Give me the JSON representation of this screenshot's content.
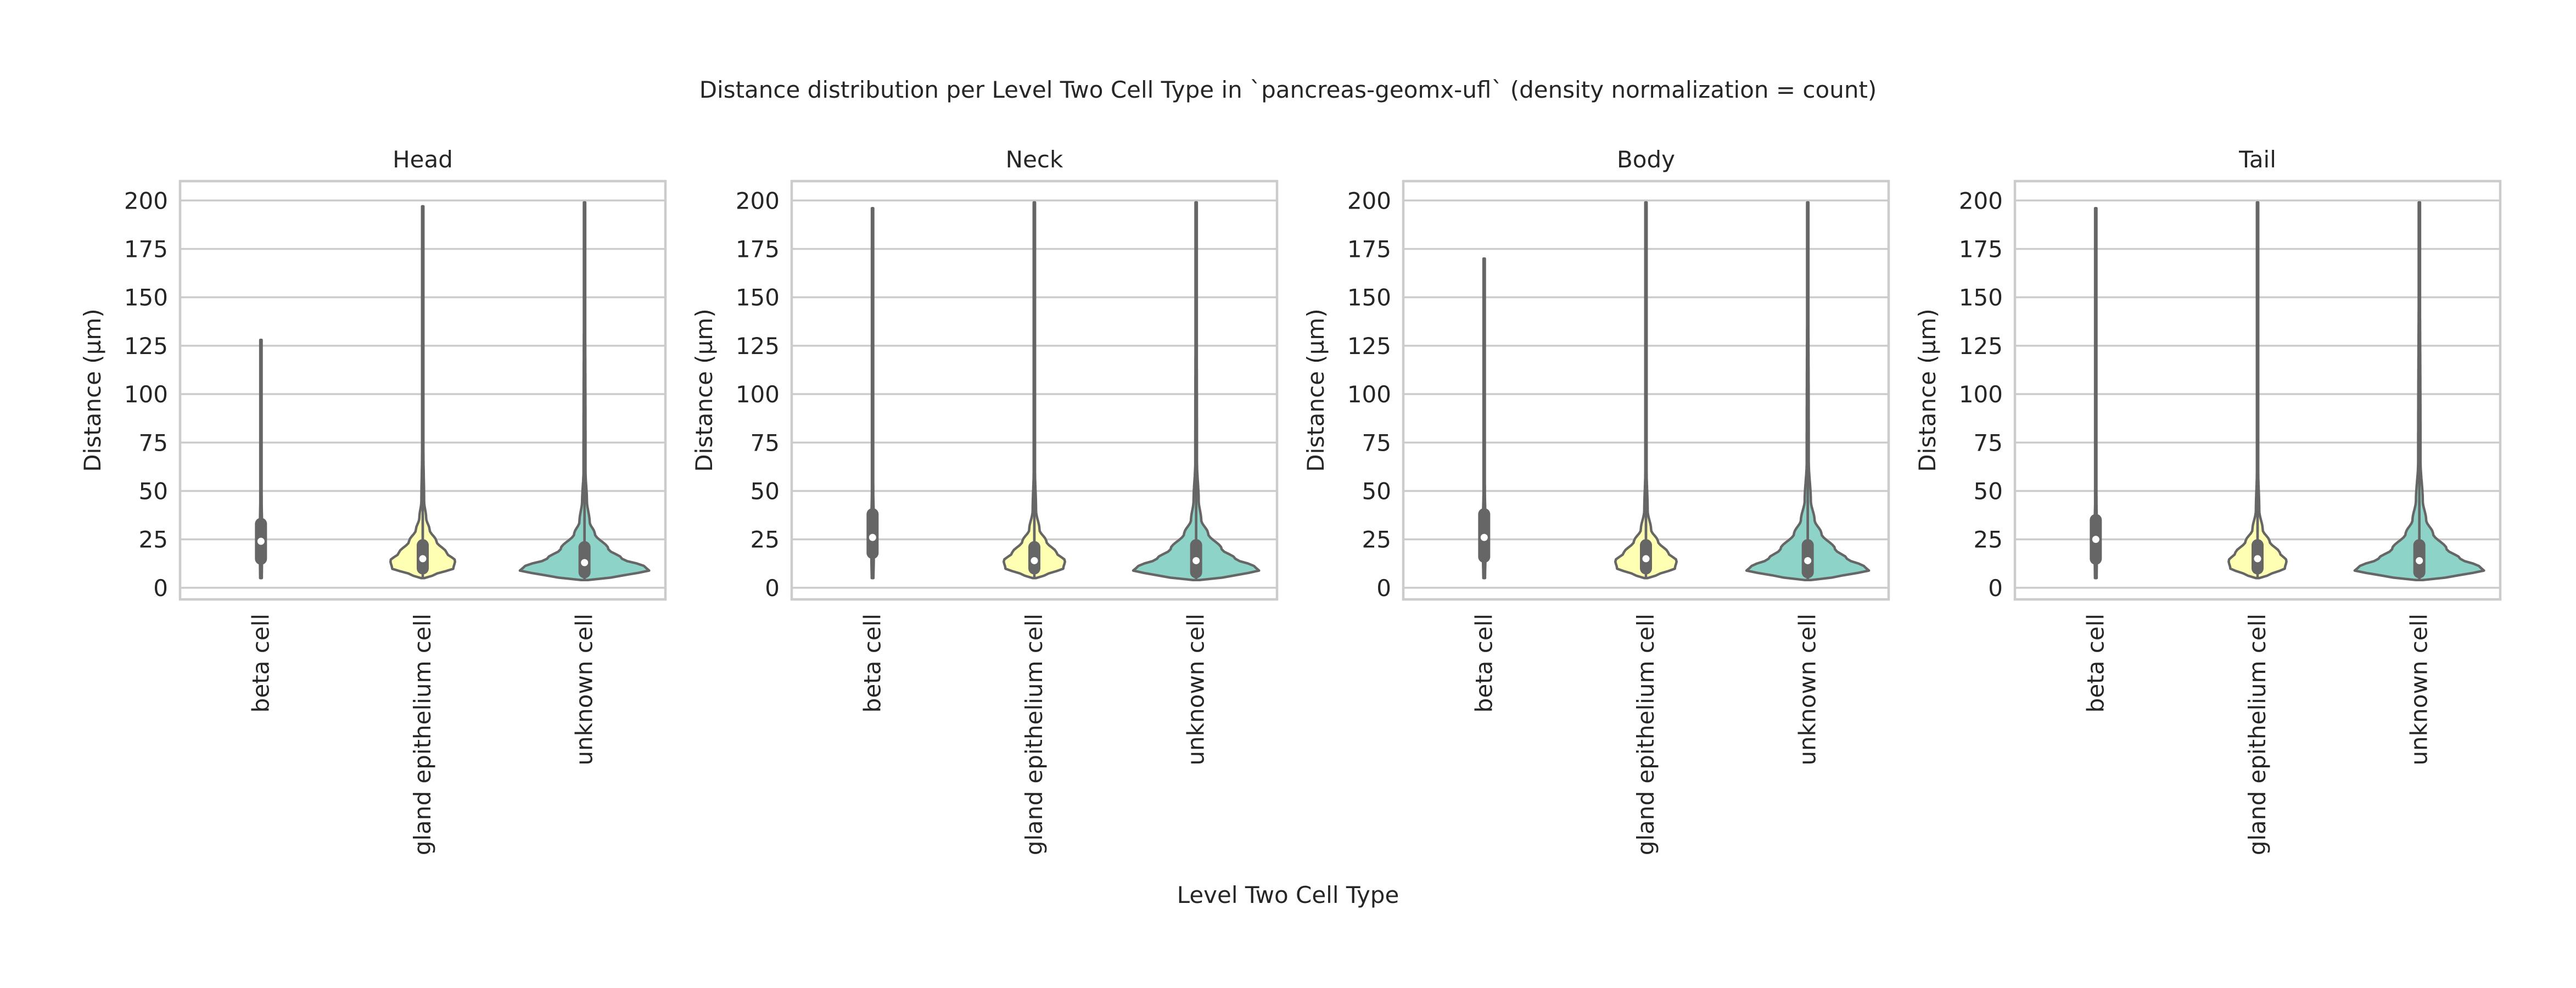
{
  "chart_data": {
    "type": "violin",
    "title": "Distance distribution per Level Two Cell Type in `pancreas-geomx-ufl` (density normalization = count)",
    "xlabel": "Level Two Cell Type",
    "ylabel": "Distance (µm)",
    "ylim": [
      -6,
      210
    ],
    "yticks": [
      0,
      25,
      50,
      75,
      100,
      125,
      150,
      175,
      200
    ],
    "grid": true,
    "categories": [
      "beta cell",
      "gland epithelium cell",
      "unknown cell"
    ],
    "colors": {
      "beta cell": "#bebada",
      "gland epithelium cell": "#ffffb3",
      "unknown cell": "#8dd3c7"
    },
    "panels": [
      {
        "title": "Head",
        "violins": [
          {
            "category": "beta cell",
            "min": 5,
            "max": 128,
            "q1": 15,
            "median": 24,
            "q3": 33,
            "whisker_high": 58,
            "profile": [
              [
                5,
                0.5
              ],
              [
                15,
                0.6
              ],
              [
                25,
                0.7
              ],
              [
                33,
                0.6
              ],
              [
                45,
                0.4
              ],
              [
                60,
                0.3
              ],
              [
                128,
                0.2
              ]
            ]
          },
          {
            "category": "gland epithelium cell",
            "min": 5,
            "max": 197,
            "q1": 10,
            "median": 15,
            "q3": 22,
            "whisker_high": 38,
            "profile": [
              [
                5,
                1
              ],
              [
                7,
                8
              ],
              [
                10,
                18
              ],
              [
                14,
                19
              ],
              [
                18,
                14
              ],
              [
                24,
                8
              ],
              [
                30,
                4
              ],
              [
                36,
                2
              ],
              [
                45,
                0.8
              ],
              [
                70,
                0.4
              ],
              [
                197,
                0.2
              ]
            ]
          },
          {
            "category": "unknown cell",
            "min": 4,
            "max": 199,
            "q1": 8,
            "median": 13,
            "q3": 21,
            "whisker_high": 40,
            "profile": [
              [
                4,
                2
              ],
              [
                6,
                22
              ],
              [
                9,
                38
              ],
              [
                11,
                35
              ],
              [
                15,
                22
              ],
              [
                20,
                14
              ],
              [
                28,
                6
              ],
              [
                34,
                3
              ],
              [
                45,
                1.4
              ],
              [
                60,
                0.6
              ],
              [
                199,
                0.2
              ]
            ]
          }
        ]
      },
      {
        "title": "Neck",
        "violins": [
          {
            "category": "beta cell",
            "min": 5,
            "max": 196,
            "q1": 18,
            "median": 26,
            "q3": 38,
            "whisker_high": 67,
            "profile": [
              [
                5,
                0.5
              ],
              [
                15,
                0.7
              ],
              [
                25,
                0.8
              ],
              [
                35,
                0.7
              ],
              [
                50,
                0.4
              ],
              [
                67,
                0.3
              ],
              [
                196,
                0.2
              ]
            ]
          },
          {
            "category": "gland epithelium cell",
            "min": 5,
            "max": 199,
            "q1": 10,
            "median": 14,
            "q3": 21,
            "whisker_high": 36,
            "profile": [
              [
                5,
                1
              ],
              [
                7,
                8
              ],
              [
                10,
                17
              ],
              [
                14,
                18
              ],
              [
                18,
                13
              ],
              [
                24,
                7
              ],
              [
                30,
                3
              ],
              [
                40,
                1
              ],
              [
                60,
                0.4
              ],
              [
                199,
                0.2
              ]
            ]
          },
          {
            "category": "unknown cell",
            "min": 4,
            "max": 199,
            "q1": 8,
            "median": 14,
            "q3": 22,
            "whisker_high": 42,
            "profile": [
              [
                4,
                2
              ],
              [
                6,
                22
              ],
              [
                9,
                37
              ],
              [
                11,
                34
              ],
              [
                15,
                23
              ],
              [
                20,
                15
              ],
              [
                28,
                7
              ],
              [
                35,
                3
              ],
              [
                45,
                1.5
              ],
              [
                65,
                0.5
              ],
              [
                199,
                0.2
              ]
            ]
          }
        ]
      },
      {
        "title": "Body",
        "violins": [
          {
            "category": "beta cell",
            "min": 5,
            "max": 170,
            "q1": 16,
            "median": 26,
            "q3": 38,
            "whisker_high": 68,
            "profile": [
              [
                5,
                0.5
              ],
              [
                15,
                0.7
              ],
              [
                25,
                0.8
              ],
              [
                35,
                0.7
              ],
              [
                50,
                0.4
              ],
              [
                68,
                0.3
              ],
              [
                170,
                0.2
              ]
            ]
          },
          {
            "category": "gland epithelium cell",
            "min": 5,
            "max": 199,
            "q1": 10,
            "median": 15,
            "q3": 22,
            "whisker_high": 38,
            "profile": [
              [
                5,
                1
              ],
              [
                7,
                8
              ],
              [
                10,
                17
              ],
              [
                14,
                18
              ],
              [
                18,
                13
              ],
              [
                24,
                7
              ],
              [
                30,
                3
              ],
              [
                40,
                1
              ],
              [
                60,
                0.4
              ],
              [
                199,
                0.2
              ]
            ]
          },
          {
            "category": "unknown cell",
            "min": 4,
            "max": 199,
            "q1": 8,
            "median": 14,
            "q3": 22,
            "whisker_high": 45,
            "profile": [
              [
                4,
                2
              ],
              [
                6,
                20
              ],
              [
                9,
                36
              ],
              [
                11,
                33
              ],
              [
                15,
                23
              ],
              [
                20,
                16
              ],
              [
                28,
                8
              ],
              [
                35,
                4
              ],
              [
                45,
                1.8
              ],
              [
                65,
                0.6
              ],
              [
                199,
                0.2
              ]
            ]
          }
        ]
      },
      {
        "title": "Tail",
        "violins": [
          {
            "category": "beta cell",
            "min": 5,
            "max": 196,
            "q1": 15,
            "median": 25,
            "q3": 35,
            "whisker_high": 60,
            "profile": [
              [
                5,
                0.5
              ],
              [
                15,
                0.6
              ],
              [
                25,
                0.7
              ],
              [
                33,
                0.6
              ],
              [
                45,
                0.4
              ],
              [
                60,
                0.3
              ],
              [
                196,
                0.2
              ]
            ]
          },
          {
            "category": "gland epithelium cell",
            "min": 5,
            "max": 199,
            "q1": 10,
            "median": 15,
            "q3": 22,
            "whisker_high": 38,
            "profile": [
              [
                5,
                1
              ],
              [
                7,
                8
              ],
              [
                10,
                16
              ],
              [
                14,
                17
              ],
              [
                18,
                13
              ],
              [
                24,
                7
              ],
              [
                30,
                3
              ],
              [
                40,
                1
              ],
              [
                60,
                0.4
              ],
              [
                199,
                0.2
              ]
            ]
          },
          {
            "category": "unknown cell",
            "min": 4,
            "max": 199,
            "q1": 8,
            "median": 14,
            "q3": 22,
            "whisker_high": 45,
            "profile": [
              [
                4,
                2
              ],
              [
                6,
                22
              ],
              [
                9,
                38
              ],
              [
                11,
                35
              ],
              [
                15,
                24
              ],
              [
                20,
                16
              ],
              [
                28,
                8
              ],
              [
                35,
                4
              ],
              [
                45,
                2
              ],
              [
                65,
                0.7
              ],
              [
                199,
                0.2
              ]
            ]
          }
        ]
      }
    ]
  }
}
